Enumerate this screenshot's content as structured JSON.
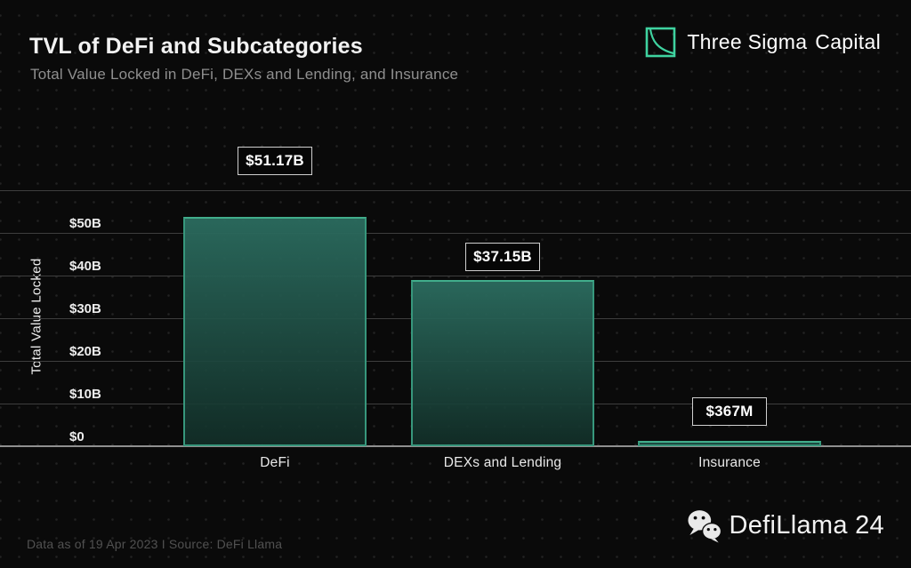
{
  "header": {
    "title": "TVL of DeFi and Subcategories",
    "subtitle": "Total Value Locked in DeFi, DEXs and Lending, and Insurance"
  },
  "brand": {
    "name_primary": "Three Sigma",
    "name_accent": "Capital",
    "accent_color": "#3fd3a0"
  },
  "chart_data": {
    "type": "bar",
    "title": "TVL of DeFi and Subcategories",
    "subtitle": "Total Value Locked in DeFi, DEXs and Lending, and Insurance",
    "xlabel": "",
    "ylabel": "Total Value Locked",
    "categories": [
      "DeFi",
      "DEXs and Lending",
      "Insurance"
    ],
    "values_billions": [
      51.17,
      37.15,
      0.367
    ],
    "value_labels": [
      "$51.17B",
      "$37.15B",
      "$367M"
    ],
    "y_ticks": [
      "$50B",
      "$40B",
      "$30B",
      "$20B",
      "$10B",
      "$0"
    ],
    "y_tick_values": [
      50,
      40,
      30,
      20,
      10,
      0
    ],
    "ylim": [
      0,
      60
    ],
    "grid": true,
    "legend": "none",
    "colors": {
      "bar_fill_top": "#2b6c5f",
      "bar_fill_bottom": "#123029",
      "bar_border": "#37977c",
      "gridline": "#3e3e3e",
      "axis_line": "#8f8f8f",
      "background": "#0a0a0a"
    }
  },
  "footer": {
    "source_note": "Data as of 19 Apr 2023 I Source: DeFi Llama",
    "watermark": "DefiLlama 24"
  }
}
